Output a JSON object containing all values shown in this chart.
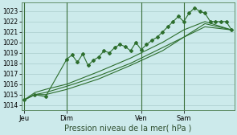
{
  "xlabel": "Pression niveau de la mer( hPa )",
  "bg_color": "#cceaeb",
  "grid_color": "#aacccc",
  "line_color": "#2d6e2d",
  "ylim": [
    1013.5,
    1023.8
  ],
  "yticks": [
    1014,
    1015,
    1016,
    1017,
    1018,
    1019,
    1020,
    1021,
    1022,
    1023
  ],
  "xtick_labels": [
    "Jeu",
    "Dim",
    "Ven",
    "Sam"
  ],
  "xtick_positions": [
    0,
    8,
    22,
    30
  ],
  "total_points": 40,
  "series_jagged": {
    "x": [
      0,
      2,
      4,
      8,
      9,
      10,
      11,
      12,
      13,
      14,
      15,
      16,
      17,
      18,
      19,
      20,
      21,
      22,
      23,
      24,
      25,
      26,
      27,
      28,
      29,
      30,
      31,
      32,
      33,
      34,
      35,
      36,
      37,
      38,
      39
    ],
    "y": [
      1014.5,
      1015.0,
      1014.8,
      1018.4,
      1018.8,
      1018.1,
      1018.9,
      1017.8,
      1018.3,
      1018.6,
      1019.2,
      1019.0,
      1019.5,
      1019.8,
      1019.6,
      1019.2,
      1020.0,
      1019.3,
      1019.8,
      1020.2,
      1020.5,
      1021.0,
      1021.5,
      1022.0,
      1022.5,
      1022.0,
      1022.8,
      1023.3,
      1023.0,
      1022.8,
      1022.0,
      1022.0,
      1022.0,
      1022.0,
      1021.2
    ]
  },
  "series_smooth1": {
    "x": [
      0,
      2,
      4,
      8,
      14,
      20,
      26,
      30,
      34,
      39
    ],
    "y": [
      1014.5,
      1015.0,
      1015.2,
      1015.8,
      1016.8,
      1018.0,
      1019.5,
      1020.5,
      1021.5,
      1021.2
    ]
  },
  "series_smooth2": {
    "x": [
      0,
      2,
      4,
      8,
      14,
      20,
      26,
      30,
      34,
      39
    ],
    "y": [
      1014.5,
      1015.2,
      1015.5,
      1016.0,
      1017.2,
      1018.5,
      1020.0,
      1021.2,
      1022.0,
      1021.2
    ]
  },
  "series_smooth3": {
    "x": [
      0,
      2,
      4,
      8,
      14,
      20,
      26,
      30,
      34,
      39
    ],
    "y": [
      1014.5,
      1015.0,
      1015.0,
      1015.5,
      1016.5,
      1017.8,
      1019.2,
      1020.5,
      1021.8,
      1021.2
    ]
  }
}
